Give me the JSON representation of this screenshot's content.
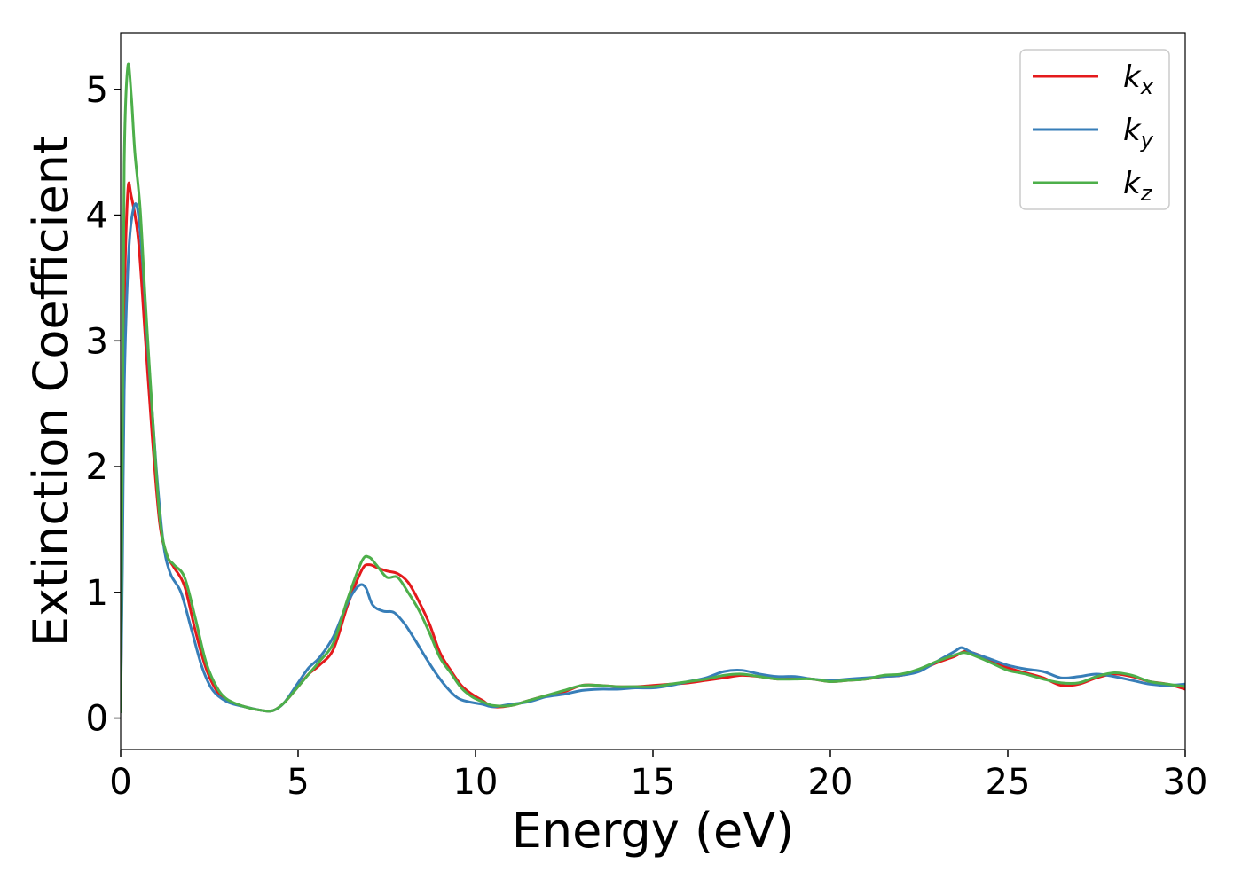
{
  "chart_data": {
    "type": "line",
    "title": "",
    "xlabel": "Energy (eV)",
    "ylabel": "Extinction Coefficient",
    "xlim": [
      0,
      30
    ],
    "ylim": [
      -0.25,
      5.45
    ],
    "xticks": [
      0,
      5,
      10,
      15,
      20,
      25,
      30
    ],
    "yticks": [
      0,
      1,
      2,
      3,
      4,
      5
    ],
    "grid": false,
    "legend_position": "top-right",
    "series": [
      {
        "name": "k",
        "subscript": "x",
        "color": "#e41a1c",
        "x": [
          0,
          0.05,
          0.1,
          0.2,
          0.3,
          0.5,
          0.7,
          0.9,
          1.1,
          1.3,
          1.5,
          1.8,
          2.1,
          2.4,
          2.7,
          3.0,
          3.5,
          4.0,
          4.3,
          4.6,
          5.0,
          5.3,
          5.6,
          6.0,
          6.4,
          6.8,
          7.0,
          7.2,
          7.5,
          7.8,
          8.1,
          8.4,
          8.7,
          9.0,
          9.3,
          9.6,
          9.9,
          10.2,
          10.5,
          11.0,
          11.5,
          12.0,
          12.5,
          13.0,
          13.5,
          14.0,
          14.5,
          15.0,
          15.5,
          16.0,
          16.5,
          17.0,
          17.5,
          18.0,
          18.5,
          19.0,
          19.5,
          20.0,
          20.5,
          21.0,
          21.5,
          22.0,
          22.5,
          23.0,
          23.5,
          23.8,
          24.2,
          24.6,
          25.0,
          25.5,
          26.0,
          26.5,
          27.0,
          27.5,
          28.0,
          28.5,
          29.0,
          29.5,
          30.0
        ],
        "y": [
          0.05,
          1.5,
          3.2,
          4.18,
          4.15,
          3.8,
          3.0,
          2.2,
          1.55,
          1.3,
          1.2,
          1.05,
          0.7,
          0.4,
          0.22,
          0.14,
          0.09,
          0.06,
          0.06,
          0.12,
          0.25,
          0.35,
          0.42,
          0.55,
          0.9,
          1.18,
          1.22,
          1.2,
          1.17,
          1.15,
          1.08,
          0.93,
          0.75,
          0.52,
          0.38,
          0.26,
          0.19,
          0.14,
          0.09,
          0.1,
          0.14,
          0.18,
          0.21,
          0.26,
          0.26,
          0.25,
          0.25,
          0.26,
          0.27,
          0.28,
          0.3,
          0.32,
          0.34,
          0.33,
          0.31,
          0.32,
          0.31,
          0.29,
          0.3,
          0.31,
          0.33,
          0.34,
          0.38,
          0.44,
          0.49,
          0.53,
          0.5,
          0.45,
          0.4,
          0.36,
          0.32,
          0.26,
          0.27,
          0.32,
          0.35,
          0.33,
          0.29,
          0.27,
          0.23
        ]
      },
      {
        "name": "k",
        "subscript": "y",
        "color": "#377eb8",
        "x": [
          0,
          0.05,
          0.1,
          0.2,
          0.3,
          0.45,
          0.6,
          0.8,
          1.0,
          1.2,
          1.4,
          1.7,
          2.0,
          2.3,
          2.6,
          3.0,
          3.5,
          4.0,
          4.3,
          4.6,
          5.0,
          5.3,
          5.6,
          6.0,
          6.4,
          6.7,
          6.9,
          7.1,
          7.4,
          7.7,
          8.0,
          8.3,
          8.6,
          8.9,
          9.2,
          9.5,
          9.8,
          10.2,
          10.5,
          11.0,
          11.5,
          12.0,
          12.5,
          13.0,
          13.5,
          14.0,
          14.5,
          15.0,
          15.5,
          16.0,
          16.5,
          17.0,
          17.5,
          18.0,
          18.5,
          19.0,
          19.5,
          20.0,
          20.5,
          21.0,
          21.5,
          22.0,
          22.5,
          23.0,
          23.5,
          23.7,
          24.0,
          24.5,
          25.0,
          25.5,
          26.0,
          26.5,
          27.0,
          27.5,
          28.0,
          28.5,
          29.0,
          29.5,
          30.0
        ],
        "y": [
          0.05,
          1.2,
          2.6,
          3.55,
          3.95,
          4.08,
          3.7,
          2.8,
          2.0,
          1.4,
          1.15,
          1.0,
          0.7,
          0.4,
          0.22,
          0.13,
          0.09,
          0.06,
          0.06,
          0.12,
          0.28,
          0.4,
          0.48,
          0.65,
          0.92,
          1.05,
          1.04,
          0.9,
          0.85,
          0.84,
          0.75,
          0.62,
          0.48,
          0.35,
          0.24,
          0.16,
          0.13,
          0.11,
          0.09,
          0.11,
          0.13,
          0.17,
          0.19,
          0.22,
          0.23,
          0.23,
          0.24,
          0.24,
          0.26,
          0.29,
          0.32,
          0.37,
          0.38,
          0.35,
          0.33,
          0.33,
          0.31,
          0.3,
          0.31,
          0.32,
          0.33,
          0.34,
          0.37,
          0.45,
          0.53,
          0.56,
          0.52,
          0.47,
          0.42,
          0.39,
          0.37,
          0.32,
          0.33,
          0.35,
          0.33,
          0.3,
          0.27,
          0.26,
          0.27
        ]
      },
      {
        "name": "k",
        "subscript": "z",
        "color": "#4daf4a",
        "x": [
          0,
          0.05,
          0.1,
          0.2,
          0.3,
          0.4,
          0.55,
          0.7,
          0.9,
          1.1,
          1.3,
          1.5,
          1.8,
          2.1,
          2.4,
          2.7,
          3.0,
          3.5,
          4.0,
          4.3,
          4.6,
          5.0,
          5.3,
          5.6,
          6.0,
          6.4,
          6.8,
          7.0,
          7.2,
          7.5,
          7.8,
          8.1,
          8.4,
          8.7,
          9.0,
          9.3,
          9.6,
          9.9,
          10.2,
          10.5,
          11.0,
          11.5,
          12.0,
          12.5,
          13.0,
          13.5,
          14.0,
          14.5,
          15.0,
          15.5,
          16.0,
          16.5,
          17.0,
          17.5,
          18.0,
          18.5,
          19.0,
          19.5,
          20.0,
          20.5,
          21.0,
          21.5,
          22.0,
          22.5,
          23.0,
          23.5,
          23.8,
          24.2,
          24.6,
          25.0,
          25.5,
          26.0,
          26.5,
          27.0,
          27.5,
          28.0,
          28.5,
          29.0,
          29.5,
          30.0
        ],
        "y": [
          0.05,
          2.2,
          4.4,
          5.18,
          4.95,
          4.5,
          4.05,
          3.3,
          2.4,
          1.6,
          1.3,
          1.22,
          1.12,
          0.8,
          0.45,
          0.25,
          0.15,
          0.09,
          0.06,
          0.06,
          0.12,
          0.25,
          0.35,
          0.45,
          0.6,
          0.95,
          1.25,
          1.28,
          1.22,
          1.12,
          1.12,
          1.0,
          0.86,
          0.68,
          0.48,
          0.36,
          0.24,
          0.17,
          0.13,
          0.1,
          0.1,
          0.14,
          0.18,
          0.22,
          0.26,
          0.26,
          0.25,
          0.25,
          0.25,
          0.27,
          0.29,
          0.31,
          0.34,
          0.35,
          0.33,
          0.31,
          0.31,
          0.31,
          0.29,
          0.3,
          0.31,
          0.34,
          0.35,
          0.39,
          0.45,
          0.5,
          0.52,
          0.48,
          0.43,
          0.38,
          0.35,
          0.31,
          0.28,
          0.28,
          0.33,
          0.36,
          0.34,
          0.29,
          0.27,
          0.25
        ]
      }
    ]
  }
}
